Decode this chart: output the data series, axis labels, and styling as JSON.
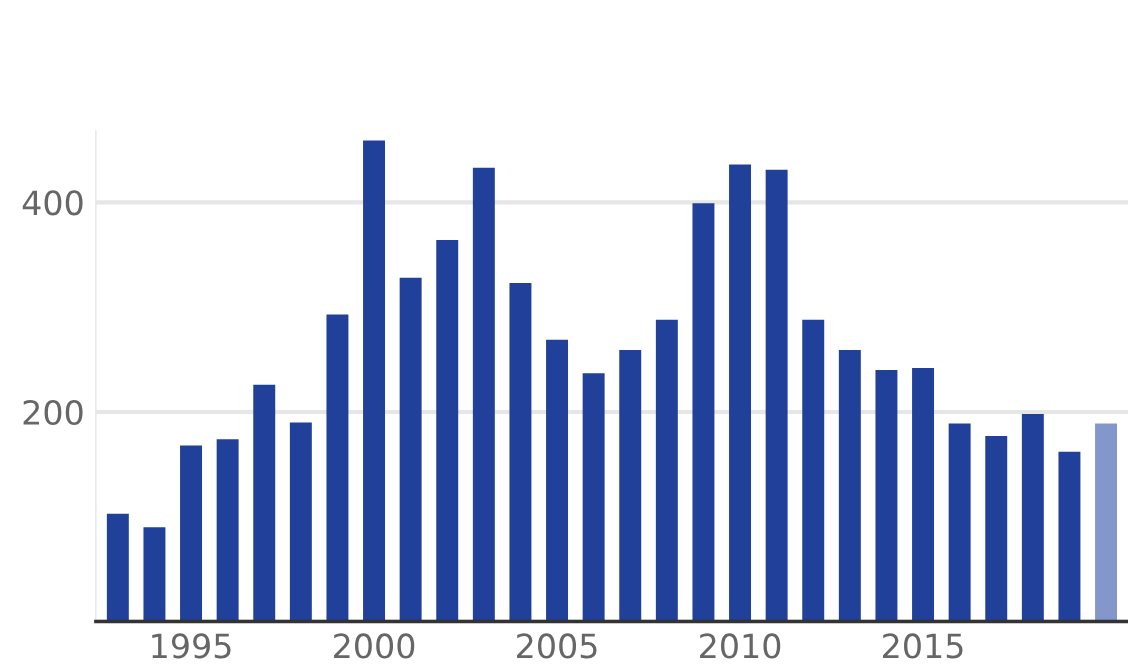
{
  "chart_data": {
    "type": "bar",
    "x": [
      1993,
      1994,
      1995,
      1996,
      1997,
      1998,
      1999,
      2000,
      2001,
      2002,
      2003,
      2004,
      2005,
      2006,
      2007,
      2008,
      2009,
      2010,
      2011,
      2012,
      2013,
      2014,
      2015,
      2016,
      2017,
      2018,
      2019,
      2020
    ],
    "values": [
      103,
      90,
      168,
      174,
      226,
      190,
      293,
      459,
      328,
      364,
      433,
      323,
      269,
      237,
      259,
      288,
      399,
      436,
      431,
      288,
      259,
      240,
      242,
      189,
      177,
      198,
      162,
      189
    ],
    "colors": [
      "#21409a",
      "#21409a",
      "#21409a",
      "#21409a",
      "#21409a",
      "#21409a",
      "#21409a",
      "#21409a",
      "#21409a",
      "#21409a",
      "#21409a",
      "#21409a",
      "#21409a",
      "#21409a",
      "#21409a",
      "#21409a",
      "#21409a",
      "#21409a",
      "#21409a",
      "#21409a",
      "#21409a",
      "#21409a",
      "#21409a",
      "#21409a",
      "#21409a",
      "#21409a",
      "#21409a",
      "#8497cb"
    ],
    "xlim": [
      1992.4,
      2020.6
    ],
    "xticks": [
      1995,
      2000,
      2005,
      2010,
      2015
    ],
    "ylim": [
      0,
      468
    ],
    "yticks": [
      {
        "value": 0,
        "label": null
      },
      200,
      400
    ],
    "grid": "y"
  }
}
